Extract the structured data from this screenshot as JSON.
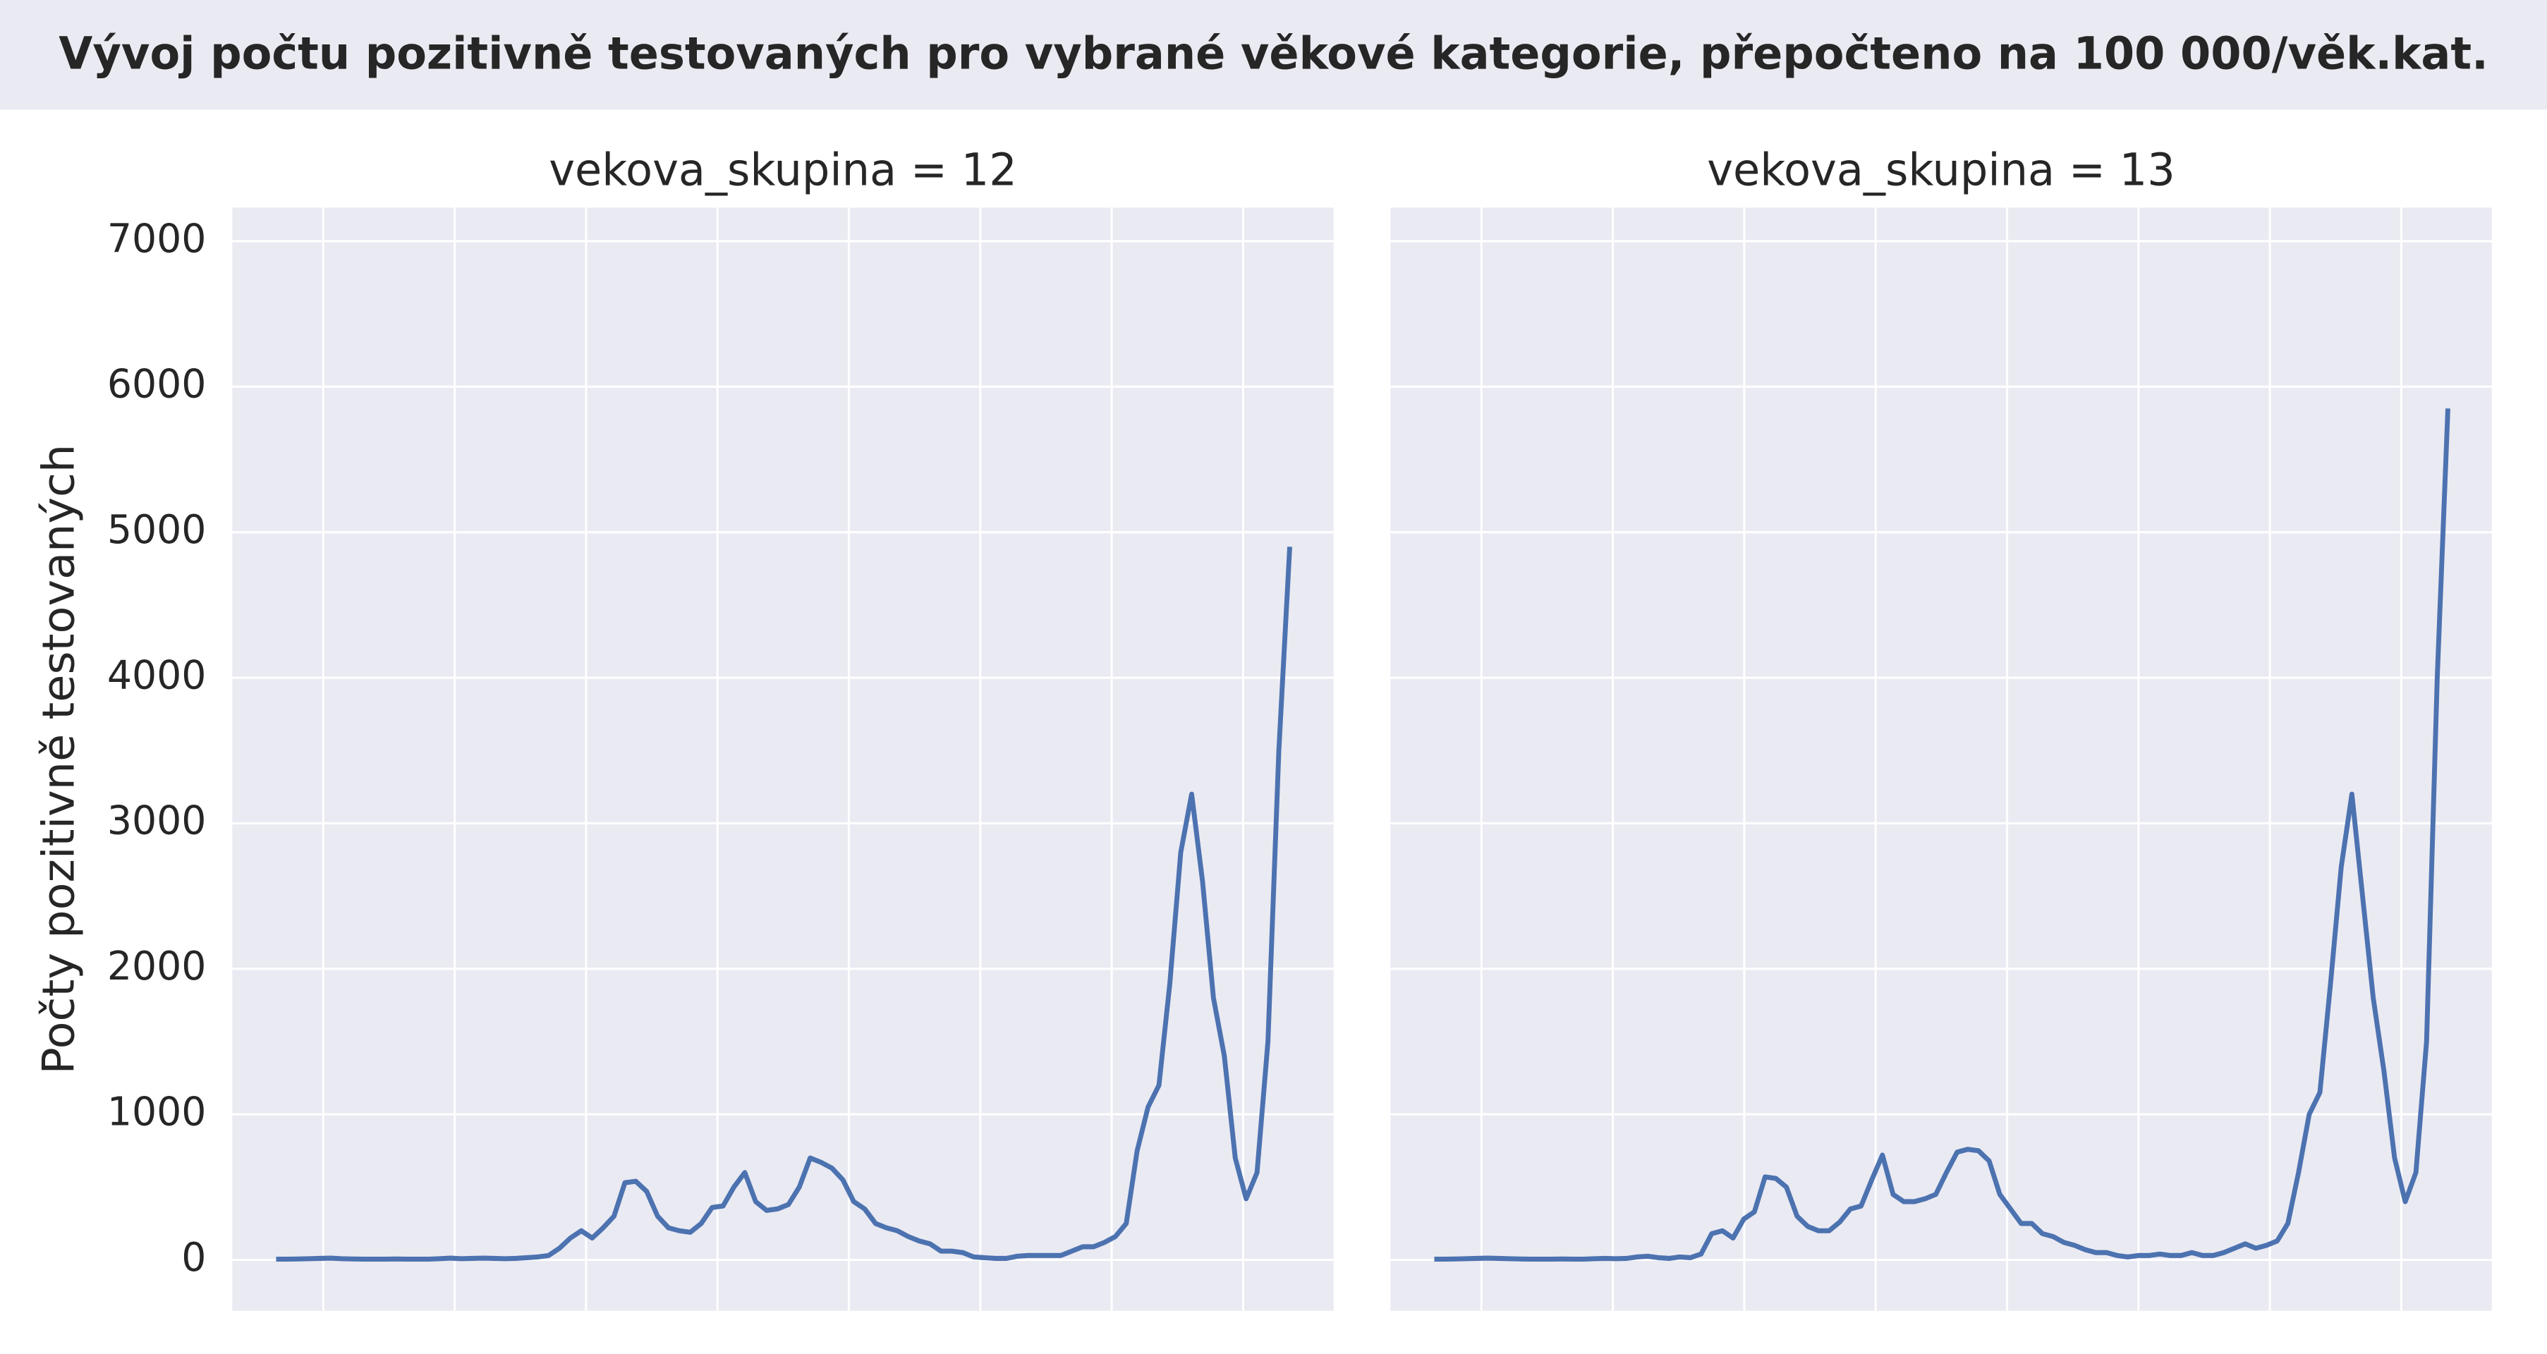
{
  "title": "Vývoj počtu pozitivně testovaných pro vybrané věkové kategorie, přepočteno na 100 000/věk.kat.",
  "chart_data": [
    {
      "type": "line",
      "title": "vekova_skupina = 12",
      "ylabel": "Počty pozitivně testovaných",
      "ylim": [
        -350,
        7230
      ],
      "yticks": [
        0,
        1000,
        2000,
        3000,
        4000,
        5000,
        6000,
        7000
      ],
      "grid": true,
      "series": [
        {
          "color": "#4c72b0",
          "values": [
            5,
            5,
            6,
            8,
            10,
            12,
            8,
            6,
            5,
            5,
            5,
            6,
            5,
            5,
            5,
            8,
            12,
            8,
            10,
            12,
            10,
            8,
            10,
            15,
            20,
            30,
            80,
            150,
            200,
            150,
            220,
            300,
            530,
            540,
            470,
            300,
            220,
            200,
            190,
            250,
            360,
            370,
            500,
            600,
            400,
            340,
            350,
            380,
            500,
            700,
            670,
            630,
            550,
            400,
            350,
            250,
            220,
            200,
            160,
            130,
            110,
            60,
            60,
            50,
            20,
            15,
            10,
            10,
            25,
            30,
            30,
            30,
            30,
            60,
            90,
            90,
            120,
            160,
            250,
            750,
            1050,
            1200,
            1900,
            2800,
            3200,
            2600,
            1800,
            1400,
            700,
            420,
            600,
            1500,
            3500,
            4900
          ]
        }
      ]
    },
    {
      "type": "line",
      "title": "vekova_skupina = 13",
      "ylim": [
        -350,
        7230
      ],
      "yticks": [
        0,
        1000,
        2000,
        3000,
        4000,
        5000,
        6000,
        7000
      ],
      "grid": true,
      "series": [
        {
          "color": "#4c72b0",
          "values": [
            5,
            5,
            6,
            8,
            10,
            12,
            10,
            8,
            6,
            5,
            5,
            5,
            6,
            5,
            5,
            8,
            10,
            8,
            10,
            20,
            25,
            15,
            10,
            20,
            15,
            40,
            180,
            200,
            150,
            280,
            330,
            570,
            560,
            500,
            300,
            230,
            200,
            200,
            260,
            350,
            370,
            550,
            720,
            450,
            400,
            400,
            420,
            450,
            600,
            740,
            760,
            750,
            680,
            450,
            350,
            250,
            250,
            180,
            160,
            120,
            100,
            70,
            50,
            50,
            30,
            20,
            30,
            30,
            40,
            30,
            30,
            50,
            30,
            30,
            50,
            80,
            110,
            80,
            100,
            130,
            250,
            600,
            1000,
            1150,
            1900,
            2700,
            3200,
            2500,
            1800,
            1300,
            700,
            400,
            600,
            1500,
            4000,
            5850
          ]
        }
      ]
    }
  ]
}
